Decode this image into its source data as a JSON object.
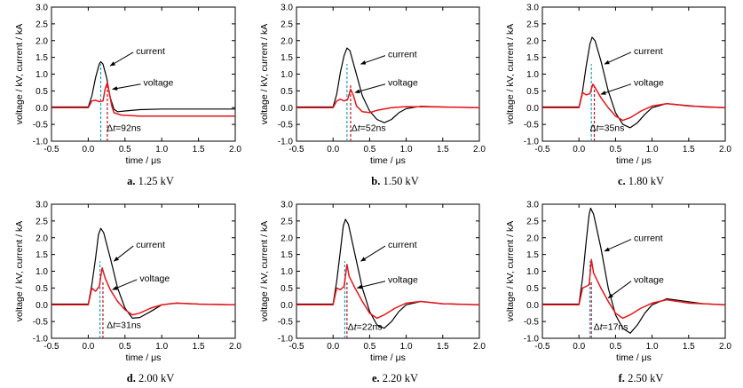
{
  "chart_data": [
    {
      "type": "line",
      "caption_letter": "a.",
      "caption_value": "1.25 kV",
      "xlabel": "time / μs",
      "ylabel": "voltage / kV, current / kA",
      "xlim": [
        -0.5,
        2.0
      ],
      "ylim": [
        -1.0,
        3.0
      ],
      "xticks": [
        "-0.5",
        "0.0",
        "0.5",
        "1.0",
        "1.5",
        "2.0"
      ],
      "yticks": [
        "-1.0",
        "-0.5",
        "0.0",
        "0.5",
        "1.0",
        "1.5",
        "2.0",
        "2.5",
        "3.0"
      ],
      "current_label": "current",
      "voltage_label": "voltage",
      "dt_prefix": "Δ",
      "dt_italic": "t",
      "dt_value": "=92ns",
      "markers": [
        0.17,
        0.26
      ],
      "series": [
        {
          "name": "current",
          "color": "#000000",
          "points": [
            [
              -0.5,
              0.02
            ],
            [
              0.0,
              0.02
            ],
            [
              0.05,
              0.35
            ],
            [
              0.1,
              0.9
            ],
            [
              0.15,
              1.3
            ],
            [
              0.17,
              1.37
            ],
            [
              0.2,
              1.3
            ],
            [
              0.25,
              0.9
            ],
            [
              0.3,
              0.3
            ],
            [
              0.35,
              -0.05
            ],
            [
              0.4,
              -0.12
            ],
            [
              0.5,
              -0.1
            ],
            [
              0.7,
              -0.06
            ],
            [
              1.0,
              -0.04
            ],
            [
              1.5,
              -0.04
            ],
            [
              2.0,
              -0.04
            ]
          ]
        },
        {
          "name": "voltage",
          "color": "#e8141b",
          "points": [
            [
              -0.5,
              0.0
            ],
            [
              0.0,
              0.0
            ],
            [
              0.05,
              0.2
            ],
            [
              0.1,
              0.22
            ],
            [
              0.15,
              0.18
            ],
            [
              0.2,
              0.2
            ],
            [
              0.23,
              0.55
            ],
            [
              0.26,
              0.75
            ],
            [
              0.29,
              0.4
            ],
            [
              0.32,
              0.05
            ],
            [
              0.35,
              -0.15
            ],
            [
              0.45,
              -0.22
            ],
            [
              0.7,
              -0.25
            ],
            [
              1.0,
              -0.25
            ],
            [
              1.5,
              -0.25
            ],
            [
              2.0,
              -0.25
            ]
          ]
        }
      ]
    },
    {
      "type": "line",
      "caption_letter": "b.",
      "caption_value": "1.50 kV",
      "xlabel": "time / μs",
      "ylabel": "voltage / kV, current / kA",
      "xlim": [
        -0.5,
        2.0
      ],
      "ylim": [
        -1.0,
        3.0
      ],
      "xticks": [
        "-0.5",
        "0.0",
        "0.5",
        "1.0",
        "1.5",
        "2.0"
      ],
      "yticks": [
        "-1.0",
        "-0.5",
        "0.0",
        "0.5",
        "1.0",
        "1.5",
        "2.0",
        "2.5",
        "3.0"
      ],
      "current_label": "current",
      "voltage_label": "voltage",
      "dt_prefix": "Δ",
      "dt_italic": "t",
      "dt_value": "=52ns",
      "markers": [
        0.19,
        0.24
      ],
      "series": [
        {
          "name": "current",
          "color": "#000000",
          "points": [
            [
              -0.5,
              0.02
            ],
            [
              0.0,
              0.02
            ],
            [
              0.05,
              0.4
            ],
            [
              0.1,
              1.05
            ],
            [
              0.15,
              1.55
            ],
            [
              0.19,
              1.78
            ],
            [
              0.23,
              1.7
            ],
            [
              0.3,
              1.15
            ],
            [
              0.4,
              0.35
            ],
            [
              0.5,
              -0.1
            ],
            [
              0.6,
              -0.35
            ],
            [
              0.7,
              -0.45
            ],
            [
              0.8,
              -0.35
            ],
            [
              0.9,
              -0.15
            ],
            [
              1.0,
              -0.03
            ],
            [
              1.2,
              0.04
            ],
            [
              1.5,
              0.02
            ],
            [
              2.0,
              0.0
            ]
          ]
        },
        {
          "name": "voltage",
          "color": "#e8141b",
          "points": [
            [
              -0.5,
              0.0
            ],
            [
              0.0,
              0.0
            ],
            [
              0.05,
              0.2
            ],
            [
              0.1,
              0.25
            ],
            [
              0.15,
              0.2
            ],
            [
              0.2,
              0.25
            ],
            [
              0.24,
              0.55
            ],
            [
              0.28,
              0.35
            ],
            [
              0.32,
              0.05
            ],
            [
              0.4,
              -0.12
            ],
            [
              0.5,
              -0.15
            ],
            [
              0.6,
              -0.08
            ],
            [
              0.8,
              0.0
            ],
            [
              1.0,
              0.03
            ],
            [
              1.5,
              0.02
            ],
            [
              2.0,
              0.0
            ]
          ]
        }
      ]
    },
    {
      "type": "line",
      "caption_letter": "c.",
      "caption_value": "1.80 kV",
      "xlabel": "time / μs",
      "ylabel": "voltage / kV, current / kA",
      "xlim": [
        -0.5,
        2.0
      ],
      "ylim": [
        -1.0,
        3.0
      ],
      "xticks": [
        "-0.5",
        "0.0",
        "0.5",
        "1.0",
        "1.5",
        "2.0"
      ],
      "yticks": [
        "-1.0",
        "-0.5",
        "0.0",
        "0.5",
        "1.0",
        "1.5",
        "2.0",
        "2.5",
        "3.0"
      ],
      "current_label": "current",
      "voltage_label": "voltage",
      "dt_prefix": "Δ",
      "dt_italic": "t",
      "dt_value": "=35ns",
      "markers": [
        0.17,
        0.21
      ],
      "series": [
        {
          "name": "current",
          "color": "#000000",
          "points": [
            [
              -0.5,
              0.02
            ],
            [
              0.0,
              0.02
            ],
            [
              0.05,
              0.5
            ],
            [
              0.1,
              1.25
            ],
            [
              0.15,
              1.9
            ],
            [
              0.18,
              2.1
            ],
            [
              0.22,
              2.0
            ],
            [
              0.3,
              1.4
            ],
            [
              0.4,
              0.5
            ],
            [
              0.5,
              -0.15
            ],
            [
              0.6,
              -0.5
            ],
            [
              0.7,
              -0.6
            ],
            [
              0.8,
              -0.45
            ],
            [
              0.9,
              -0.2
            ],
            [
              1.0,
              0.0
            ],
            [
              1.2,
              0.12
            ],
            [
              1.4,
              0.08
            ],
            [
              1.7,
              0.02
            ],
            [
              2.0,
              0.0
            ]
          ]
        },
        {
          "name": "voltage",
          "color": "#e8141b",
          "points": [
            [
              -0.5,
              0.0
            ],
            [
              0.0,
              0.0
            ],
            [
              0.05,
              0.45
            ],
            [
              0.1,
              0.38
            ],
            [
              0.15,
              0.42
            ],
            [
              0.19,
              0.7
            ],
            [
              0.22,
              0.6
            ],
            [
              0.3,
              0.3
            ],
            [
              0.4,
              0.0
            ],
            [
              0.5,
              -0.25
            ],
            [
              0.6,
              -0.38
            ],
            [
              0.7,
              -0.3
            ],
            [
              0.85,
              -0.1
            ],
            [
              1.0,
              0.05
            ],
            [
              1.2,
              0.12
            ],
            [
              1.5,
              0.05
            ],
            [
              2.0,
              0.0
            ]
          ]
        }
      ]
    },
    {
      "type": "line",
      "caption_letter": "d.",
      "caption_value": "2.00 kV",
      "xlabel": "time / μs",
      "ylabel": "voltage / kV, current / kA",
      "xlim": [
        -0.5,
        2.0
      ],
      "ylim": [
        -1.0,
        3.0
      ],
      "xticks": [
        "-0.5",
        "0.0",
        "0.5",
        "1.0",
        "1.5",
        "2.0"
      ],
      "yticks": [
        "-1.0",
        "-0.5",
        "0.0",
        "0.5",
        "1.0",
        "1.5",
        "2.0",
        "2.5",
        "3.0"
      ],
      "current_label": "current",
      "voltage_label": "voltage",
      "dt_prefix": "Δ",
      "dt_italic": "t",
      "dt_value": "=31ns",
      "markers": [
        0.16,
        0.2
      ],
      "series": [
        {
          "name": "current",
          "color": "#000000",
          "points": [
            [
              -0.5,
              0.02
            ],
            [
              0.0,
              0.02
            ],
            [
              0.05,
              0.6
            ],
            [
              0.1,
              1.4
            ],
            [
              0.14,
              2.1
            ],
            [
              0.17,
              2.28
            ],
            [
              0.21,
              2.15
            ],
            [
              0.3,
              1.4
            ],
            [
              0.4,
              0.5
            ],
            [
              0.5,
              -0.1
            ],
            [
              0.6,
              -0.4
            ],
            [
              0.7,
              -0.38
            ],
            [
              0.85,
              -0.2
            ],
            [
              1.0,
              0.0
            ],
            [
              1.2,
              0.05
            ],
            [
              1.5,
              0.02
            ],
            [
              2.0,
              0.0
            ]
          ]
        },
        {
          "name": "voltage",
          "color": "#e8141b",
          "points": [
            [
              -0.5,
              0.0
            ],
            [
              0.0,
              0.0
            ],
            [
              0.05,
              0.5
            ],
            [
              0.1,
              0.4
            ],
            [
              0.15,
              0.55
            ],
            [
              0.19,
              1.1
            ],
            [
              0.23,
              0.8
            ],
            [
              0.3,
              0.45
            ],
            [
              0.4,
              0.1
            ],
            [
              0.5,
              -0.15
            ],
            [
              0.6,
              -0.3
            ],
            [
              0.7,
              -0.25
            ],
            [
              0.85,
              -0.1
            ],
            [
              1.0,
              0.0
            ],
            [
              1.2,
              0.05
            ],
            [
              1.5,
              0.02
            ],
            [
              2.0,
              0.0
            ]
          ]
        }
      ]
    },
    {
      "type": "line",
      "caption_letter": "e.",
      "caption_value": "2.20 kV",
      "xlabel": "time / μs",
      "ylabel": "voltage / kV, current / kA",
      "xlim": [
        -0.5,
        2.0
      ],
      "ylim": [
        -1.0,
        3.0
      ],
      "xticks": [
        "-0.5",
        "0.0",
        "0.5",
        "1.0",
        "1.5",
        "2.0"
      ],
      "yticks": [
        "-1.0",
        "-0.5",
        "0.0",
        "0.5",
        "1.0",
        "1.5",
        "2.0",
        "2.5",
        "3.0"
      ],
      "current_label": "current",
      "voltage_label": "voltage",
      "dt_prefix": "Δ",
      "dt_italic": "t",
      "dt_value": "=22ns",
      "markers": [
        0.16,
        0.19
      ],
      "series": [
        {
          "name": "current",
          "color": "#000000",
          "points": [
            [
              -0.5,
              0.02
            ],
            [
              0.0,
              0.02
            ],
            [
              0.05,
              0.7
            ],
            [
              0.1,
              1.6
            ],
            [
              0.14,
              2.35
            ],
            [
              0.17,
              2.55
            ],
            [
              0.21,
              2.4
            ],
            [
              0.3,
              1.5
            ],
            [
              0.4,
              0.5
            ],
            [
              0.5,
              -0.2
            ],
            [
              0.6,
              -0.6
            ],
            [
              0.7,
              -0.7
            ],
            [
              0.8,
              -0.5
            ],
            [
              0.9,
              -0.2
            ],
            [
              1.0,
              0.0
            ],
            [
              1.2,
              0.1
            ],
            [
              1.5,
              0.03
            ],
            [
              2.0,
              0.0
            ]
          ]
        },
        {
          "name": "voltage",
          "color": "#e8141b",
          "points": [
            [
              -0.5,
              0.0
            ],
            [
              0.0,
              0.0
            ],
            [
              0.05,
              0.5
            ],
            [
              0.1,
              0.45
            ],
            [
              0.15,
              0.55
            ],
            [
              0.19,
              1.2
            ],
            [
              0.22,
              0.85
            ],
            [
              0.3,
              0.5
            ],
            [
              0.4,
              0.1
            ],
            [
              0.5,
              -0.25
            ],
            [
              0.6,
              -0.4
            ],
            [
              0.7,
              -0.3
            ],
            [
              0.85,
              -0.1
            ],
            [
              1.0,
              0.05
            ],
            [
              1.2,
              0.1
            ],
            [
              1.5,
              0.03
            ],
            [
              2.0,
              0.0
            ]
          ]
        }
      ]
    },
    {
      "type": "line",
      "caption_letter": "f.",
      "caption_value": "2.50 kV",
      "xlabel": "time / μs",
      "ylabel": "voltage / kV, current / kA",
      "xlim": [
        -0.5,
        2.0
      ],
      "ylim": [
        -1.0,
        3.0
      ],
      "xticks": [
        "-0.5",
        "0.0",
        "0.5",
        "1.0",
        "1.5",
        "2.0"
      ],
      "yticks": [
        "-1.0",
        "-0.5",
        "0.0",
        "0.5",
        "1.0",
        "1.5",
        "2.0",
        "2.5",
        "3.0"
      ],
      "current_label": "current",
      "voltage_label": "voltage",
      "dt_prefix": "Δ",
      "dt_italic": "t",
      "dt_value": "=17ns",
      "markers": [
        0.15,
        0.17
      ],
      "series": [
        {
          "name": "current",
          "color": "#000000",
          "points": [
            [
              -0.5,
              0.02
            ],
            [
              0.0,
              0.02
            ],
            [
              0.05,
              0.8
            ],
            [
              0.1,
              1.9
            ],
            [
              0.14,
              2.7
            ],
            [
              0.16,
              2.88
            ],
            [
              0.2,
              2.7
            ],
            [
              0.3,
              1.7
            ],
            [
              0.4,
              0.5
            ],
            [
              0.5,
              -0.3
            ],
            [
              0.6,
              -0.7
            ],
            [
              0.7,
              -0.85
            ],
            [
              0.8,
              -0.6
            ],
            [
              0.9,
              -0.25
            ],
            [
              1.0,
              0.0
            ],
            [
              1.2,
              0.18
            ],
            [
              1.4,
              0.12
            ],
            [
              1.7,
              0.03
            ],
            [
              2.0,
              0.0
            ]
          ]
        },
        {
          "name": "voltage",
          "color": "#e8141b",
          "points": [
            [
              -0.5,
              0.0
            ],
            [
              0.0,
              0.0
            ],
            [
              0.05,
              0.5
            ],
            [
              0.1,
              0.55
            ],
            [
              0.14,
              0.6
            ],
            [
              0.17,
              1.35
            ],
            [
              0.2,
              0.95
            ],
            [
              0.3,
              0.5
            ],
            [
              0.4,
              0.1
            ],
            [
              0.5,
              -0.25
            ],
            [
              0.6,
              -0.4
            ],
            [
              0.7,
              -0.3
            ],
            [
              0.85,
              -0.1
            ],
            [
              1.0,
              0.05
            ],
            [
              1.2,
              0.15
            ],
            [
              1.5,
              0.05
            ],
            [
              2.0,
              0.0
            ]
          ]
        }
      ]
    }
  ]
}
